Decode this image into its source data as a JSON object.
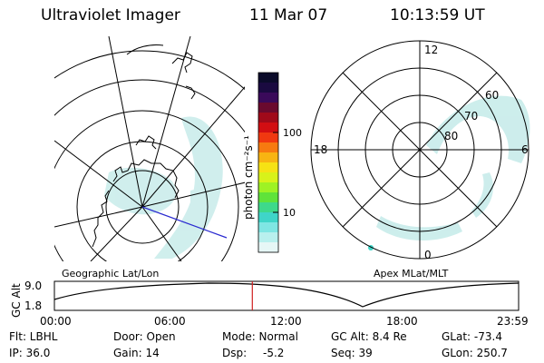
{
  "header": {
    "instrument": "Ultraviolet Imager",
    "date": "11 Mar 07",
    "time": "10:13:59 UT"
  },
  "geo_panel": {
    "label": "Geographic Lat/Lon"
  },
  "mlt_panel": {
    "label": "Apex MLat/MLT",
    "mlt_labels": {
      "top": "12",
      "bottom": "0",
      "left": "18",
      "right": "6"
    },
    "lat_labels": [
      "60",
      "70",
      "80"
    ]
  },
  "colorbar": {
    "unit_label": "photon cm⁻²s⁻¹",
    "tick_labels": [
      "100",
      "10"
    ],
    "colors": [
      "#0b0b2a",
      "#1a0a40",
      "#3a0a5a",
      "#6a0a2e",
      "#a00a1a",
      "#d20e12",
      "#f03810",
      "#f77a10",
      "#f8b412",
      "#f6e214",
      "#d8f21a",
      "#9ef224",
      "#5fe33a",
      "#3ed98a",
      "#3fd5c8",
      "#7fe6e3",
      "#b8f0ee",
      "#e6f7f6"
    ]
  },
  "timeline": {
    "ylabel": "GC Alt",
    "y_ticks": [
      "9.0",
      "1.8"
    ],
    "x_ticks": [
      "00:00",
      "06:00",
      "12:00",
      "18:00",
      "23:59"
    ],
    "current_time_fraction": 0.4264
  },
  "info": {
    "filter": "Flt: LBHL",
    "ip": "IP: 36.0",
    "door": "Door: Open",
    "gain": "Gain: 14",
    "mode": "Mode: Normal",
    "dsp_label": "Dsp:",
    "dsp_value": "-5.2",
    "gc_alt": "GC Alt: 8.4 Re",
    "seq": "Seq: 39",
    "glat": "GLat: -73.4",
    "glon": "GLon: 250.7"
  }
}
